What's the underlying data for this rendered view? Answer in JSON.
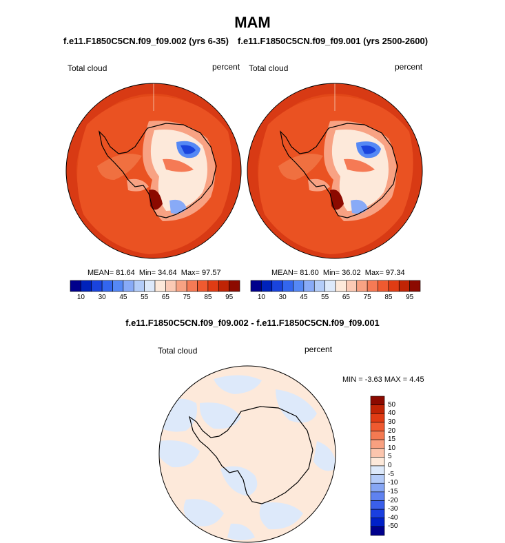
{
  "figure": {
    "season_title": "MAM"
  },
  "panels": [
    {
      "case_title": "f.e11.F1850C5CN.f09_f09.002 (yrs 6-35)",
      "variable": "Total cloud",
      "units": "percent",
      "stats": {
        "mean": "81.64",
        "min": "34.64",
        "max": "97.57"
      }
    },
    {
      "case_title": "f.e11.F1850C5CN.f09_f09.001 (yrs 2500-2600)",
      "variable": "Total cloud",
      "units": "percent",
      "stats": {
        "mean": "81.60",
        "min": "36.02",
        "max": "97.34"
      }
    }
  ],
  "diff_panel": {
    "title": "f.e11.F1850C5CN.f09_f09.002 - f.e11.F1850C5CN.f09_f09.001",
    "variable": "Total cloud",
    "units": "percent",
    "range_text": "MIN = -3.63 MAX =  4.45"
  },
  "colorbar_abs": {
    "colors": [
      "#00008c",
      "#0022bb",
      "#1a44dd",
      "#3366ee",
      "#5588f5",
      "#88aaf7",
      "#b3ccf8",
      "#dde9fa",
      "#fde9da",
      "#fbcab5",
      "#f8a283",
      "#f57a55",
      "#ef5a30",
      "#e03c14",
      "#c02405",
      "#8c0a00"
    ],
    "tick_labels": [
      "10",
      "30",
      "45",
      "55",
      "65",
      "75",
      "85",
      "95"
    ],
    "tick_after_box": [
      1,
      3,
      5,
      7,
      9,
      11,
      13,
      15
    ]
  },
  "colorbar_diff": {
    "colors": [
      "#00008c",
      "#0020c8",
      "#1a3fe0",
      "#3a5fea",
      "#5f82f0",
      "#86a6f4",
      "#b4cbf8",
      "#dde9fa",
      "#fde9da",
      "#fbc5ad",
      "#f8a080",
      "#f47a52",
      "#ef5a30",
      "#e03c14",
      "#c02405",
      "#8c0a00"
    ],
    "tick_labels": [
      "50",
      "40",
      "30",
      "20",
      "15",
      "10",
      "5",
      "0",
      "-5",
      "-10",
      "-15",
      "-20",
      "-30",
      "-40",
      "-50"
    ]
  },
  "chart_data": [
    {
      "type": "heatmap",
      "projection": "south polar stereographic",
      "title": "f.e11.F1850C5CN.f09_f09.002 (yrs 6-35)",
      "variable": "Total cloud",
      "units": "percent",
      "mean": 81.64,
      "min": 34.64,
      "max": 97.57,
      "contour_levels": [
        10,
        20,
        30,
        40,
        45,
        50,
        55,
        60,
        65,
        70,
        75,
        80,
        85,
        90,
        95
      ]
    },
    {
      "type": "heatmap",
      "projection": "south polar stereographic",
      "title": "f.e11.F1850C5CN.f09_f09.001 (yrs 2500-2600)",
      "variable": "Total cloud",
      "units": "percent",
      "mean": 81.6,
      "min": 36.02,
      "max": 97.34,
      "contour_levels": [
        10,
        20,
        30,
        40,
        45,
        50,
        55,
        60,
        65,
        70,
        75,
        80,
        85,
        90,
        95
      ]
    },
    {
      "type": "heatmap",
      "projection": "south polar stereographic",
      "title": "f.e11.F1850C5CN.f09_f09.002 - f.e11.F1850C5CN.f09_f09.001",
      "variable": "Total cloud",
      "units": "percent",
      "min": -3.63,
      "max": 4.45,
      "contour_levels": [
        -50,
        -40,
        -30,
        -20,
        -15,
        -10,
        -5,
        0,
        5,
        10,
        15,
        20,
        30,
        40,
        50
      ]
    }
  ]
}
